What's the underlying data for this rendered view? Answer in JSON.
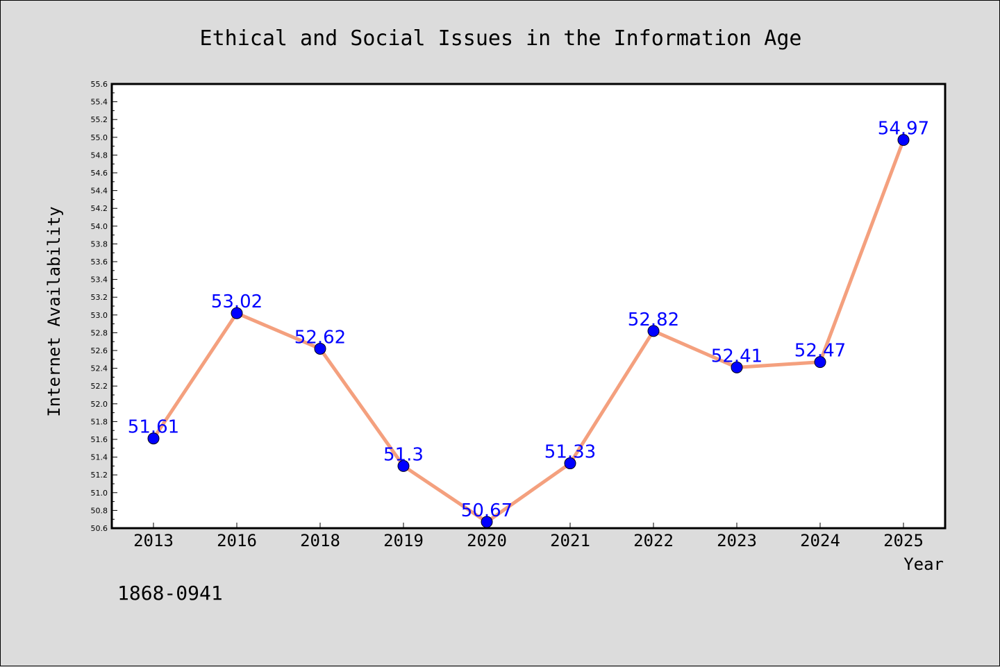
{
  "chart_data": {
    "type": "line",
    "title": "Ethical and Social Issues in the Information Age",
    "xlabel": "Year",
    "ylabel": "Internet Availability",
    "categories": [
      "2013",
      "2016",
      "2018",
      "2019",
      "2020",
      "2021",
      "2022",
      "2023",
      "2024",
      "2025"
    ],
    "series": [
      {
        "values": [
          51.61,
          53.02,
          52.62,
          51.3,
          50.67,
          51.33,
          52.82,
          52.41,
          52.47,
          54.97
        ],
        "labels": [
          "51.61",
          "53.02",
          "52.62",
          "51.3",
          "50.67",
          "51.33",
          "52.82",
          "52.41",
          "52.47",
          "54.97"
        ],
        "line_color": "#f4a07e",
        "marker_color": "#0000ff"
      }
    ],
    "ylim": [
      50.6,
      55.6
    ],
    "yticks": [
      "50.6",
      "50.8",
      "51.0",
      "51.2",
      "51.4",
      "51.6",
      "51.8",
      "52.0",
      "52.2",
      "52.4",
      "52.6",
      "52.8",
      "53.0",
      "53.2",
      "53.4",
      "53.6",
      "53.8",
      "54.0",
      "54.2",
      "54.4",
      "54.6",
      "54.8",
      "55.0",
      "55.2",
      "55.4",
      "55.6"
    ],
    "grid": false,
    "legend": "none",
    "footnote": "1868-0941"
  },
  "colors": {
    "background": "#dcdcdc",
    "plot_background": "#ffffff",
    "label_color": "#0000ff"
  }
}
